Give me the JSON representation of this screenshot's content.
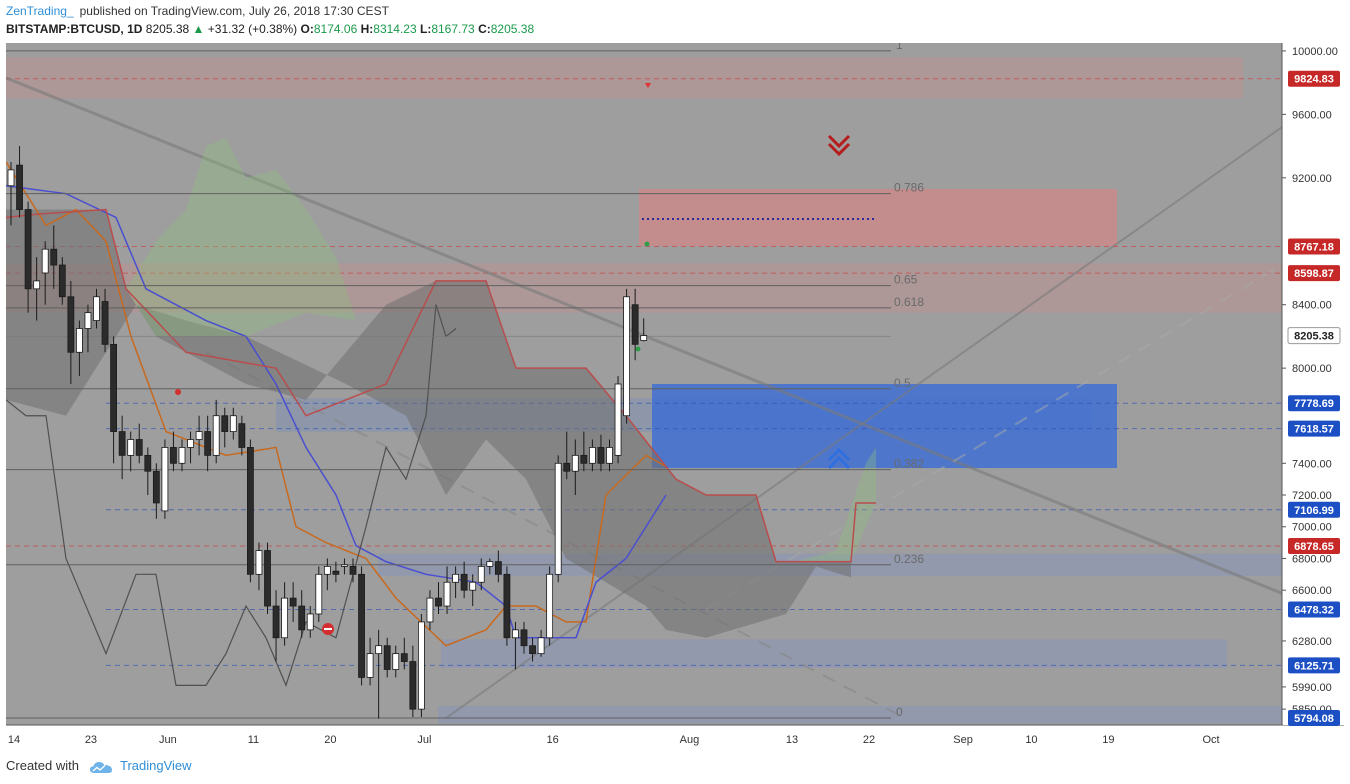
{
  "header": {
    "author": "ZenTrading_",
    "published": "published on TradingView.com, July 26, 2018 17:30 CEST",
    "symbol": "BITSTAMP:BTCUSD, 1D",
    "price": "8205.38",
    "change": "+31.32 (+0.38%)",
    "open_label": "O:",
    "open": "8174.06",
    "high_label": "H:",
    "high": "8314.23",
    "low_label": "L:",
    "low": "8167.73",
    "close_label": "C:",
    "close": "8205.38"
  },
  "footer": {
    "created_with": "Created with",
    "brand": "TradingView"
  },
  "colors": {
    "background": "#9e9e9e",
    "bull": "#ffffff",
    "bear": "#2b2b2b",
    "red_zone": "#c98a8a",
    "blue_zone": "#3f6fd2",
    "red_label": "#c62828",
    "blue_label": "#1d4fc4",
    "price_label": "#ffffff"
  },
  "chart_data": {
    "type": "candlestick",
    "ylim": [
      5750,
      10050
    ],
    "y_ticks": [
      10000,
      9600,
      9200,
      8400,
      8000,
      7400,
      7200,
      7000,
      6800,
      6600,
      6280,
      5990,
      5850
    ],
    "x_ticks": [
      {
        "label": "14",
        "day": 0
      },
      {
        "label": "23",
        "day": 9
      },
      {
        "label": "Jun",
        "day": 18
      },
      {
        "label": "11",
        "day": 28
      },
      {
        "label": "20",
        "day": 37
      },
      {
        "label": "Jul",
        "day": 48
      },
      {
        "label": "16",
        "day": 63
      },
      {
        "label": "Aug",
        "day": 79
      },
      {
        "label": "13",
        "day": 91
      },
      {
        "label": "22",
        "day": 100
      },
      {
        "label": "Sep",
        "day": 111
      },
      {
        "label": "10",
        "day": 119
      },
      {
        "label": "19",
        "day": 128
      },
      {
        "label": "Oct",
        "day": 140
      }
    ],
    "price_labels": [
      {
        "value": "9824.83",
        "type": "red",
        "y": 9824.83
      },
      {
        "value": "8767.18",
        "type": "red",
        "y": 8767.18
      },
      {
        "value": "8598.87",
        "type": "red",
        "y": 8598.87
      },
      {
        "value": "8205.38",
        "type": "current",
        "y": 8205.38
      },
      {
        "value": "7778.69",
        "type": "blue",
        "y": 7778.69
      },
      {
        "value": "7618.57",
        "type": "blue",
        "y": 7618.57
      },
      {
        "value": "7106.99",
        "type": "blue",
        "y": 7106.99
      },
      {
        "value": "6878.65",
        "type": "red",
        "y": 6878.65
      },
      {
        "value": "6478.32",
        "type": "blue",
        "y": 6478.32
      },
      {
        "value": "6125.71",
        "type": "blue",
        "y": 6125.71
      },
      {
        "value": "5794.08",
        "type": "blue",
        "y": 5794.08
      }
    ],
    "fib_levels": [
      {
        "label": "1",
        "y": 10000
      },
      {
        "label": "0.786",
        "y": 9100
      },
      {
        "label": "0.65",
        "y": 8520
      },
      {
        "label": "0.618",
        "y": 8380
      },
      {
        "label": "0.5",
        "y": 7870
      },
      {
        "label": "0.382",
        "y": 7360
      },
      {
        "label": "0.236",
        "y": 6760
      },
      {
        "label": "0",
        "y": 5794
      }
    ],
    "candles": [
      {
        "o": 9150,
        "h": 9300,
        "l": 8900,
        "c": 9250
      },
      {
        "o": 9280,
        "h": 9400,
        "l": 8950,
        "c": 9000
      },
      {
        "o": 9000,
        "h": 9050,
        "l": 8350,
        "c": 8500
      },
      {
        "o": 8500,
        "h": 8700,
        "l": 8300,
        "c": 8550
      },
      {
        "o": 8600,
        "h": 8800,
        "l": 8400,
        "c": 8750
      },
      {
        "o": 8750,
        "h": 8900,
        "l": 8500,
        "c": 8650
      },
      {
        "o": 8650,
        "h": 8700,
        "l": 8400,
        "c": 8450
      },
      {
        "o": 8450,
        "h": 8550,
        "l": 7900,
        "c": 8100
      },
      {
        "o": 8100,
        "h": 8300,
        "l": 7950,
        "c": 8250
      },
      {
        "o": 8250,
        "h": 8400,
        "l": 8100,
        "c": 8350
      },
      {
        "o": 8300,
        "h": 8500,
        "l": 8250,
        "c": 8450
      },
      {
        "o": 8420,
        "h": 8500,
        "l": 8100,
        "c": 8150
      },
      {
        "o": 8150,
        "h": 8200,
        "l": 7400,
        "c": 7600
      },
      {
        "o": 7600,
        "h": 7700,
        "l": 7300,
        "c": 7450
      },
      {
        "o": 7450,
        "h": 7600,
        "l": 7350,
        "c": 7550
      },
      {
        "o": 7550,
        "h": 7650,
        "l": 7400,
        "c": 7450
      },
      {
        "o": 7450,
        "h": 7500,
        "l": 7200,
        "c": 7350
      },
      {
        "o": 7350,
        "h": 7400,
        "l": 7050,
        "c": 7150
      },
      {
        "o": 7100,
        "h": 7550,
        "l": 7050,
        "c": 7500
      },
      {
        "o": 7500,
        "h": 7600,
        "l": 7350,
        "c": 7400
      },
      {
        "o": 7400,
        "h": 7550,
        "l": 7350,
        "c": 7500
      },
      {
        "o": 7500,
        "h": 7600,
        "l": 7400,
        "c": 7550
      },
      {
        "o": 7550,
        "h": 7700,
        "l": 7450,
        "c": 7600
      },
      {
        "o": 7600,
        "h": 7700,
        "l": 7350,
        "c": 7450
      },
      {
        "o": 7450,
        "h": 7800,
        "l": 7400,
        "c": 7700
      },
      {
        "o": 7700,
        "h": 7750,
        "l": 7500,
        "c": 7600
      },
      {
        "o": 7600,
        "h": 7750,
        "l": 7550,
        "c": 7700
      },
      {
        "o": 7650,
        "h": 7700,
        "l": 7450,
        "c": 7500
      },
      {
        "o": 7500,
        "h": 7550,
        "l": 6650,
        "c": 6700
      },
      {
        "o": 6700,
        "h": 6900,
        "l": 6600,
        "c": 6850
      },
      {
        "o": 6850,
        "h": 6900,
        "l": 6450,
        "c": 6500
      },
      {
        "o": 6500,
        "h": 6600,
        "l": 6150,
        "c": 6300
      },
      {
        "o": 6300,
        "h": 6650,
        "l": 6250,
        "c": 6550
      },
      {
        "o": 6550,
        "h": 6650,
        "l": 6400,
        "c": 6500
      },
      {
        "o": 6500,
        "h": 6600,
        "l": 6300,
        "c": 6350
      },
      {
        "o": 6350,
        "h": 6500,
        "l": 6300,
        "c": 6450
      },
      {
        "o": 6450,
        "h": 6750,
        "l": 6400,
        "c": 6700
      },
      {
        "o": 6700,
        "h": 6800,
        "l": 6600,
        "c": 6750
      },
      {
        "o": 6720,
        "h": 6780,
        "l": 6650,
        "c": 6700
      },
      {
        "o": 6750,
        "h": 6800,
        "l": 6700,
        "c": 6760
      },
      {
        "o": 6750,
        "h": 6800,
        "l": 6650,
        "c": 6700
      },
      {
        "o": 6700,
        "h": 6750,
        "l": 6000,
        "c": 6050
      },
      {
        "o": 6050,
        "h": 6300,
        "l": 6000,
        "c": 6200
      },
      {
        "o": 6200,
        "h": 6350,
        "l": 5790,
        "c": 6250
      },
      {
        "o": 6250,
        "h": 6300,
        "l": 6050,
        "c": 6100
      },
      {
        "o": 6100,
        "h": 6250,
        "l": 6050,
        "c": 6200
      },
      {
        "o": 6200,
        "h": 6300,
        "l": 6100,
        "c": 6150
      },
      {
        "o": 6150,
        "h": 6250,
        "l": 5800,
        "c": 5850
      },
      {
        "o": 5850,
        "h": 6450,
        "l": 5800,
        "c": 6400
      },
      {
        "o": 6400,
        "h": 6600,
        "l": 6350,
        "c": 6550
      },
      {
        "o": 6550,
        "h": 6650,
        "l": 6450,
        "c": 6500
      },
      {
        "o": 6500,
        "h": 6750,
        "l": 6450,
        "c": 6650
      },
      {
        "o": 6650,
        "h": 6750,
        "l": 6550,
        "c": 6700
      },
      {
        "o": 6700,
        "h": 6780,
        "l": 6550,
        "c": 6600
      },
      {
        "o": 6600,
        "h": 6700,
        "l": 6500,
        "c": 6650
      },
      {
        "o": 6650,
        "h": 6800,
        "l": 6600,
        "c": 6750
      },
      {
        "o": 6750,
        "h": 6800,
        "l": 6700,
        "c": 6780
      },
      {
        "o": 6780,
        "h": 6850,
        "l": 6650,
        "c": 6700
      },
      {
        "o": 6700,
        "h": 6750,
        "l": 6250,
        "c": 6300
      },
      {
        "o": 6300,
        "h": 6400,
        "l": 6100,
        "c": 6350
      },
      {
        "o": 6350,
        "h": 6400,
        "l": 6200,
        "c": 6250
      },
      {
        "o": 6250,
        "h": 6300,
        "l": 6150,
        "c": 6200
      },
      {
        "o": 6200,
        "h": 6350,
        "l": 6180,
        "c": 6300
      },
      {
        "o": 6300,
        "h": 6750,
        "l": 6250,
        "c": 6700
      },
      {
        "o": 6700,
        "h": 7450,
        "l": 6650,
        "c": 7400
      },
      {
        "o": 7400,
        "h": 7600,
        "l": 7300,
        "c": 7350
      },
      {
        "o": 7350,
        "h": 7550,
        "l": 7200,
        "c": 7450
      },
      {
        "o": 7450,
        "h": 7600,
        "l": 7350,
        "c": 7400
      },
      {
        "o": 7400,
        "h": 7550,
        "l": 7350,
        "c": 7500
      },
      {
        "o": 7500,
        "h": 7580,
        "l": 7350,
        "c": 7400
      },
      {
        "o": 7400,
        "h": 7550,
        "l": 7350,
        "c": 7500
      },
      {
        "o": 7450,
        "h": 7950,
        "l": 7400,
        "c": 7900
      },
      {
        "o": 7700,
        "h": 8500,
        "l": 7650,
        "c": 8450
      },
      {
        "o": 8400,
        "h": 8500,
        "l": 8050,
        "c": 8150
      },
      {
        "o": 8174.06,
        "h": 8314.23,
        "l": 8167.73,
        "c": 8205.38
      }
    ]
  }
}
